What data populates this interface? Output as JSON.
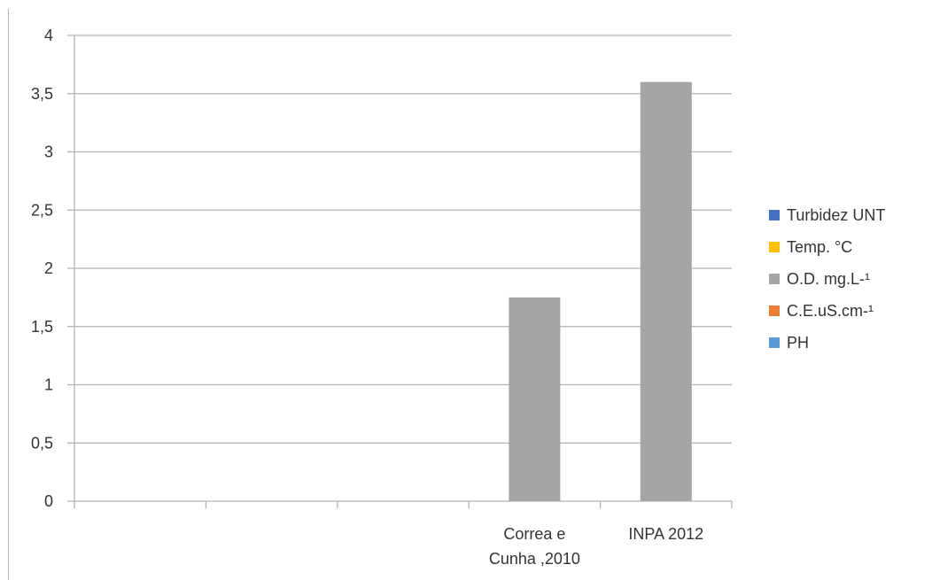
{
  "chart_data": {
    "type": "bar",
    "categories": [
      "",
      "",
      "",
      "Correa e\nCunha ,2010",
      "INPA 2012"
    ],
    "series": [
      {
        "name": "Turbidez UNT",
        "color": "#4472c4",
        "values": [
          0,
          0,
          0,
          0,
          0
        ]
      },
      {
        "name": "Temp. °C",
        "color": "#ffc000",
        "values": [
          0,
          0,
          0,
          0,
          0
        ]
      },
      {
        "name": "O.D. mg.L-¹",
        "color": "#a5a5a5",
        "values": [
          0,
          0,
          0,
          1.75,
          3.6
        ]
      },
      {
        "name": "C.E.uS.cm-¹",
        "color": "#ed7d31",
        "values": [
          0,
          0,
          0,
          0,
          0
        ]
      },
      {
        "name": "PH",
        "color": "#5b9bd5",
        "values": [
          0,
          0,
          0,
          0,
          0
        ]
      }
    ],
    "plotted_series": "O.D. mg.L-¹",
    "ylim": [
      0,
      4
    ],
    "yticks": [
      "0",
      "0,5",
      "1",
      "1,5",
      "2",
      "2,5",
      "3",
      "3,5",
      "4"
    ],
    "grid": true,
    "legend_position": "right"
  }
}
